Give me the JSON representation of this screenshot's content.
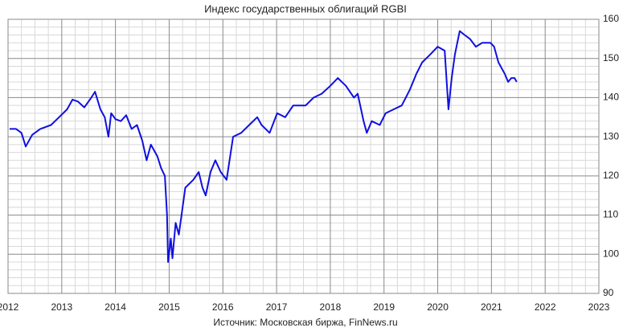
{
  "chart_data": {
    "type": "line",
    "title": "Индекс государственных облигаций RGBI",
    "source": "Источник: Московская биржа, FinNews.ru",
    "x": [
      2012.03,
      2012.15,
      2012.25,
      2012.33,
      2012.45,
      2012.6,
      2012.8,
      2012.95,
      2013.1,
      2013.2,
      2013.3,
      2013.42,
      2013.55,
      2013.62,
      2013.72,
      2013.8,
      2013.87,
      2013.92,
      2014.0,
      2014.1,
      2014.2,
      2014.3,
      2014.4,
      2014.5,
      2014.58,
      2014.66,
      2014.78,
      2014.85,
      2014.92,
      2014.96,
      2014.98,
      2015.03,
      2015.06,
      2015.12,
      2015.18,
      2015.3,
      2015.45,
      2015.55,
      2015.62,
      2015.68,
      2015.77,
      2015.86,
      2015.96,
      2016.07,
      2016.19,
      2016.34,
      2016.49,
      2016.64,
      2016.72,
      2016.87,
      2017.01,
      2017.16,
      2017.31,
      2017.54,
      2017.69,
      2017.84,
      2018.0,
      2018.14,
      2018.29,
      2018.44,
      2018.51,
      2018.62,
      2018.68,
      2018.77,
      2018.92,
      2019.03,
      2019.18,
      2019.33,
      2019.48,
      2019.6,
      2019.71,
      2019.86,
      2020.0,
      2020.13,
      2020.2,
      2020.26,
      2020.32,
      2020.41,
      2020.5,
      2020.6,
      2020.71,
      2020.83,
      2020.98,
      2021.05,
      2021.13,
      2021.25,
      2021.31,
      2021.37,
      2021.43,
      2021.47
    ],
    "series": [
      {
        "name": "RGBI",
        "color": "#1010e0",
        "values": [
          132,
          132,
          131,
          127.5,
          130.5,
          132,
          133,
          135,
          137,
          139.5,
          139,
          137.5,
          140,
          141.5,
          137,
          135,
          130,
          136,
          134.5,
          134,
          135.5,
          132,
          133,
          129,
          124,
          128,
          125,
          122,
          120,
          110,
          98,
          104,
          99,
          108,
          105,
          117,
          119,
          121,
          117,
          115,
          121,
          124,
          121,
          119,
          130,
          131,
          133,
          135,
          133,
          131,
          136,
          135,
          138,
          138,
          140,
          141,
          143,
          145,
          143,
          140,
          141,
          134,
          131,
          134,
          133,
          136,
          137,
          138,
          142,
          146,
          149,
          151,
          153,
          152,
          137,
          145,
          151,
          157,
          156,
          155,
          153,
          154,
          154,
          153,
          149,
          146,
          144,
          145,
          145,
          144
        ]
      }
    ],
    "xlim": [
      2012,
      2023
    ],
    "xticks": [
      2012,
      2013,
      2014,
      2015,
      2016,
      2017,
      2018,
      2019,
      2020,
      2021,
      2022,
      2023
    ],
    "ylim": [
      90,
      160
    ],
    "yticks": [
      90,
      100,
      110,
      120,
      130,
      140,
      150,
      160
    ],
    "grid": true,
    "minor_grid_divisions": [
      4,
      5
    ]
  }
}
